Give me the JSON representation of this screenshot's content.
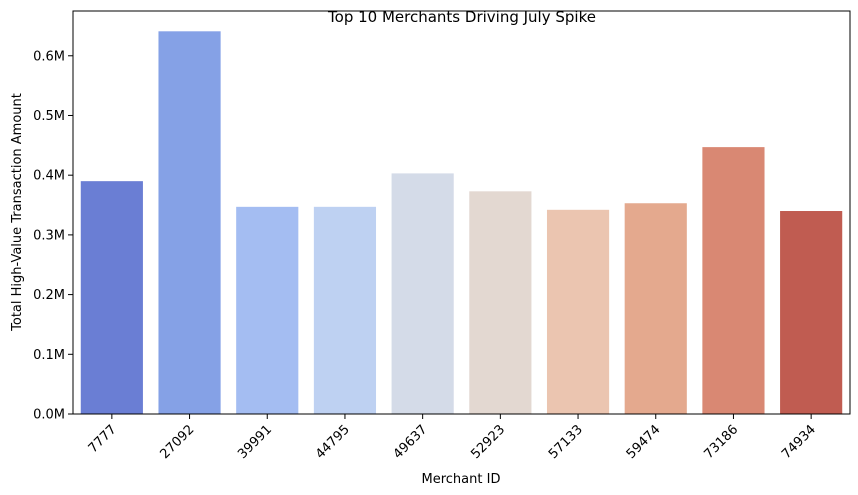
{
  "chart_data": {
    "type": "bar",
    "title": "Top 10 Merchants Driving July Spike",
    "xlabel": "Merchant ID",
    "ylabel": "Total High-Value Transaction Amount",
    "categories": [
      "7777",
      "27092",
      "39991",
      "44795",
      "49637",
      "52923",
      "57133",
      "59474",
      "73186",
      "74934"
    ],
    "values": [
      390000,
      641000,
      347000,
      347000,
      403000,
      373000,
      342000,
      353000,
      447000,
      340000
    ],
    "colors": [
      "#6a7ed4",
      "#85a1e6",
      "#a4bdf2",
      "#bed1f2",
      "#d4dbe8",
      "#e3d8d1",
      "#ebc5b0",
      "#e4a98e",
      "#d98873",
      "#c05c51"
    ],
    "ylim": [
      0,
      675000
    ],
    "yticks": [
      0,
      100000,
      200000,
      300000,
      400000,
      500000,
      600000
    ],
    "ytick_labels": [
      "0.0M",
      "0.1M",
      "0.2M",
      "0.3M",
      "0.4M",
      "0.5M",
      "0.6M"
    ],
    "grid": false,
    "legend": "none"
  }
}
